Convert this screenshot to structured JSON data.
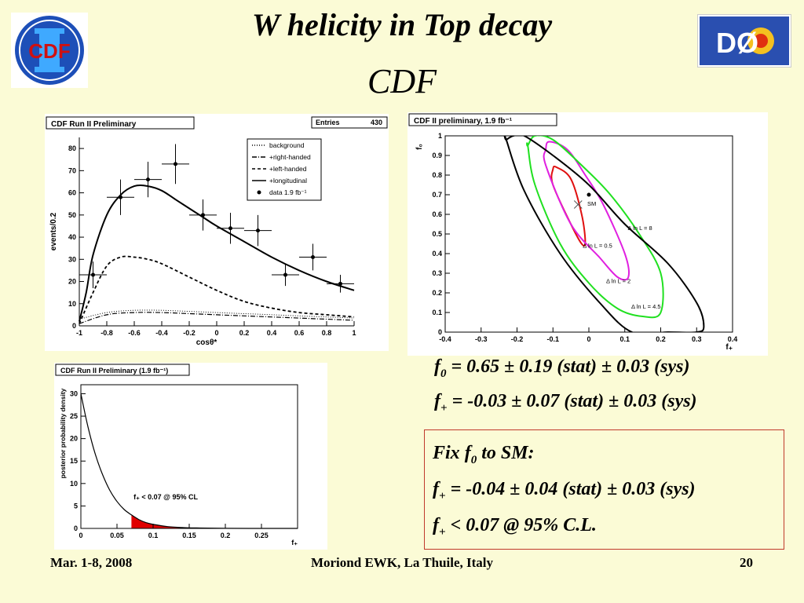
{
  "slide": {
    "title": "W helicity in Top decay",
    "subtitle": "CDF",
    "logos": {
      "left": "CDF",
      "right": "DØ"
    },
    "results": {
      "f0": {
        "sym": "f",
        "sub": "0",
        "text": " = 0.65 ± 0.19 (stat) ± 0.03 (sys)"
      },
      "fplus": {
        "sym": "f",
        "sub": "+",
        "text": " = -0.03 ± 0.07 (stat) ± 0.03 (sys)"
      }
    },
    "box": {
      "head_pre": "Fix ",
      "head_sym": "f",
      "head_sub": "0",
      "head_post": " to SM:",
      "line1": {
        "sym": "f",
        "sub": "+",
        "text": " = -0.04 ± 0.04 (stat) ± 0.03 (sys)"
      },
      "line2": {
        "sym": "f",
        "sub": "+",
        "text": " < 0.07 @ 95% C.L."
      }
    },
    "footer": {
      "left": "Mar. 1-8, 2008",
      "center": "Moriond EWK, La Thuile, Italy",
      "right": "20"
    }
  },
  "chart_data": [
    {
      "type": "line",
      "title": "CDF Run II Preliminary",
      "stats": {
        "label": "Entries",
        "value": "430"
      },
      "xlabel": "cosθ*",
      "ylabel": "events/0.2",
      "xlim": [
        -1,
        1
      ],
      "ylim": [
        0,
        85
      ],
      "xticks": [
        "-1",
        "-0.8",
        "-0.6",
        "-0.4",
        "-0.2",
        "0",
        "0.2",
        "0.4",
        "0.6",
        "0.8",
        "1"
      ],
      "yticks": [
        "0",
        "10",
        "20",
        "30",
        "40",
        "50",
        "60",
        "70",
        "80"
      ],
      "legend": [
        "background",
        "+right-handed",
        "+left-handed",
        "+longitudinal",
        "data 1.9 fb⁻¹"
      ],
      "data": {
        "x": [
          -0.9,
          -0.7,
          -0.5,
          -0.3,
          -0.1,
          0.1,
          0.3,
          0.5,
          0.7,
          0.9
        ],
        "y": [
          23,
          58,
          66,
          73,
          50,
          44,
          43,
          23,
          31,
          19
        ],
        "err": [
          6,
          8,
          8,
          9,
          7,
          7,
          7,
          5,
          6,
          4
        ]
      },
      "series": [
        {
          "name": "background",
          "x": [
            -1,
            -0.8,
            -0.6,
            -0.4,
            -0.2,
            0,
            0.2,
            0.4,
            0.6,
            0.8,
            1
          ],
          "y": [
            3,
            6,
            7,
            7,
            6.5,
            6,
            5.5,
            5,
            4.5,
            4,
            3.5
          ]
        },
        {
          "name": "+right-handed",
          "x": [
            -1,
            -0.8,
            -0.6,
            -0.4,
            -0.2,
            0,
            0.2,
            0.4,
            0.6,
            0.8,
            1
          ],
          "y": [
            1,
            5,
            6,
            6,
            5.5,
            5,
            4.5,
            4,
            3.5,
            3,
            2.5
          ]
        },
        {
          "name": "+left-handed",
          "x": [
            -1,
            -0.9,
            -0.8,
            -0.7,
            -0.6,
            -0.5,
            -0.4,
            -0.2,
            0,
            0.2,
            0.4,
            0.6,
            0.8,
            1
          ],
          "y": [
            1,
            15,
            27,
            31,
            31,
            30,
            28,
            22,
            16,
            11,
            8,
            6,
            5,
            4
          ]
        },
        {
          "name": "+longitudinal",
          "x": [
            -1,
            -0.95,
            -0.9,
            -0.8,
            -0.7,
            -0.6,
            -0.5,
            -0.4,
            -0.3,
            -0.2,
            -0.1,
            0,
            0.2,
            0.4,
            0.6,
            0.8,
            1
          ],
          "y": [
            2,
            15,
            32,
            50,
            59,
            63,
            63,
            61,
            57,
            53,
            49,
            45,
            38,
            31,
            25,
            20,
            16
          ]
        }
      ]
    },
    {
      "type": "line",
      "title": "CDF II preliminary, 1.9 fb⁻¹",
      "xlabel": "f₊",
      "ylabel": "f₀",
      "xlim": [
        -0.4,
        0.4
      ],
      "ylim": [
        0,
        1
      ],
      "xticks": [
        "-0.4",
        "-0.3",
        "-0.2",
        "-0.1",
        "0",
        "0.1",
        "0.2",
        "0.3",
        "0.4"
      ],
      "yticks": [
        "0",
        "0.1",
        "0.2",
        "0.3",
        "0.4",
        "0.5",
        "0.6",
        "0.7",
        "0.8",
        "0.9",
        "1"
      ],
      "best_fit": {
        "x": -0.03,
        "y": 0.65
      },
      "sm": {
        "x": 0,
        "y": 0.7,
        "label": "SM"
      },
      "series": [
        {
          "name": "Δ ln L = 0.5",
          "color": "#e01010",
          "x": [
            -0.1,
            -0.09,
            -0.05,
            -0.02,
            -0.01,
            -0.02,
            -0.05,
            -0.1
          ],
          "y": [
            0.83,
            0.84,
            0.78,
            0.6,
            0.46,
            0.45,
            0.55,
            0.75
          ]
        },
        {
          "name": "Δ ln L = 2",
          "color": "#e020e0",
          "x": [
            -0.12,
            -0.11,
            -0.06,
            -0.01,
            0.04,
            0.1,
            0.11,
            0.08,
            0.03,
            -0.05,
            -0.12
          ],
          "y": [
            0.93,
            0.97,
            0.93,
            0.8,
            0.65,
            0.4,
            0.28,
            0.28,
            0.38,
            0.55,
            0.85
          ]
        },
        {
          "name": "Δ ln L = 4.5",
          "color": "#20e020",
          "x": [
            -0.17,
            -0.15,
            -0.1,
            -0.02,
            0.06,
            0.14,
            0.2,
            0.2,
            0.15,
            0.08,
            0.0,
            -0.08,
            -0.15,
            -0.17
          ],
          "y": [
            0.95,
            1.0,
            0.98,
            0.85,
            0.7,
            0.5,
            0.3,
            0.1,
            0.08,
            0.12,
            0.25,
            0.45,
            0.75,
            0.95
          ]
        },
        {
          "name": "Δ ln L = 8",
          "color": "#000000",
          "x": [
            -0.23,
            -0.21,
            -0.18,
            -0.1,
            0.0,
            0.1,
            0.22,
            0.3,
            0.32,
            0.3,
            0.22,
            0.12,
            0.03,
            -0.08,
            -0.18,
            -0.23
          ],
          "y": [
            0.98,
            1.0,
            1.0,
            0.9,
            0.75,
            0.55,
            0.35,
            0.15,
            0.03,
            0.0,
            0.0,
            0.0,
            0.15,
            0.4,
            0.72,
            0.98
          ]
        }
      ]
    },
    {
      "type": "area",
      "title": "CDF Run II Preliminary (1.9 fb⁻¹)",
      "xlabel": "f₊",
      "ylabel": "posterior probability density",
      "xlim": [
        0,
        0.3
      ],
      "ylim": [
        0,
        32
      ],
      "xticks": [
        "0",
        "0.05",
        "0.1",
        "0.15",
        "0.2",
        "0.25"
      ],
      "yticks": [
        "0",
        "5",
        "10",
        "15",
        "20",
        "25",
        "30"
      ],
      "annotation": "f₊ <  0.07 @ 95% CL",
      "cut": 0.07,
      "x": [
        0,
        0.01,
        0.02,
        0.03,
        0.04,
        0.05,
        0.06,
        0.07,
        0.08,
        0.09,
        0.1,
        0.12,
        0.14,
        0.16,
        0.2,
        0.25,
        0.3
      ],
      "y": [
        30,
        22.5,
        16.5,
        12,
        8.5,
        6,
        4.2,
        3,
        2,
        1.3,
        0.9,
        0.4,
        0.2,
        0.1,
        0.02,
        0,
        0
      ]
    }
  ]
}
